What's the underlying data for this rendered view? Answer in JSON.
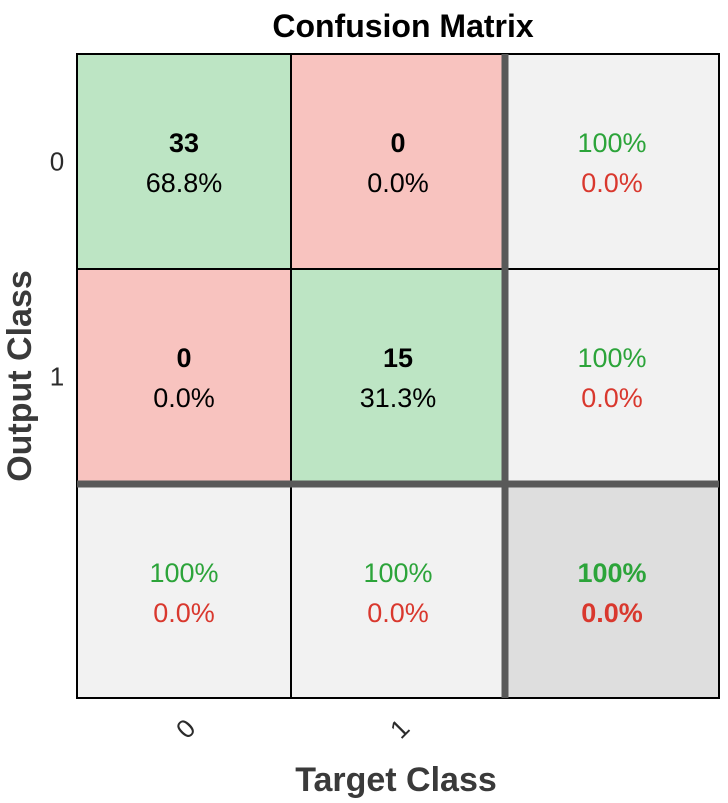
{
  "chart_data": {
    "type": "heatmap",
    "title": "Confusion Matrix",
    "xlabel": "Target Class",
    "ylabel": "Output Class",
    "x_ticks": [
      "0",
      "1"
    ],
    "y_ticks": [
      "0",
      "1"
    ],
    "cells": [
      [
        {
          "count": "33",
          "pct": "68.8%"
        },
        {
          "count": "0",
          "pct": "0.0%"
        }
      ],
      [
        {
          "count": "0",
          "pct": "0.0%"
        },
        {
          "count": "15",
          "pct": "31.3%"
        }
      ]
    ],
    "row_summary": [
      {
        "correct": "100%",
        "incorrect": "0.0%"
      },
      {
        "correct": "100%",
        "incorrect": "0.0%"
      }
    ],
    "col_summary": [
      {
        "correct": "100%",
        "incorrect": "0.0%"
      },
      {
        "correct": "100%",
        "incorrect": "0.0%"
      }
    ],
    "overall": {
      "correct": "100%",
      "incorrect": "0.0%"
    }
  },
  "colors": {
    "correct_cell": "#bde5c4",
    "incorrect_cell": "#f8c3bf",
    "summary_cell": "#f2f2f2",
    "overall_cell": "#dedede",
    "correct_text": "#2ca43a",
    "incorrect_text": "#d9382e",
    "grid": "#000000",
    "separator": "#595959"
  }
}
